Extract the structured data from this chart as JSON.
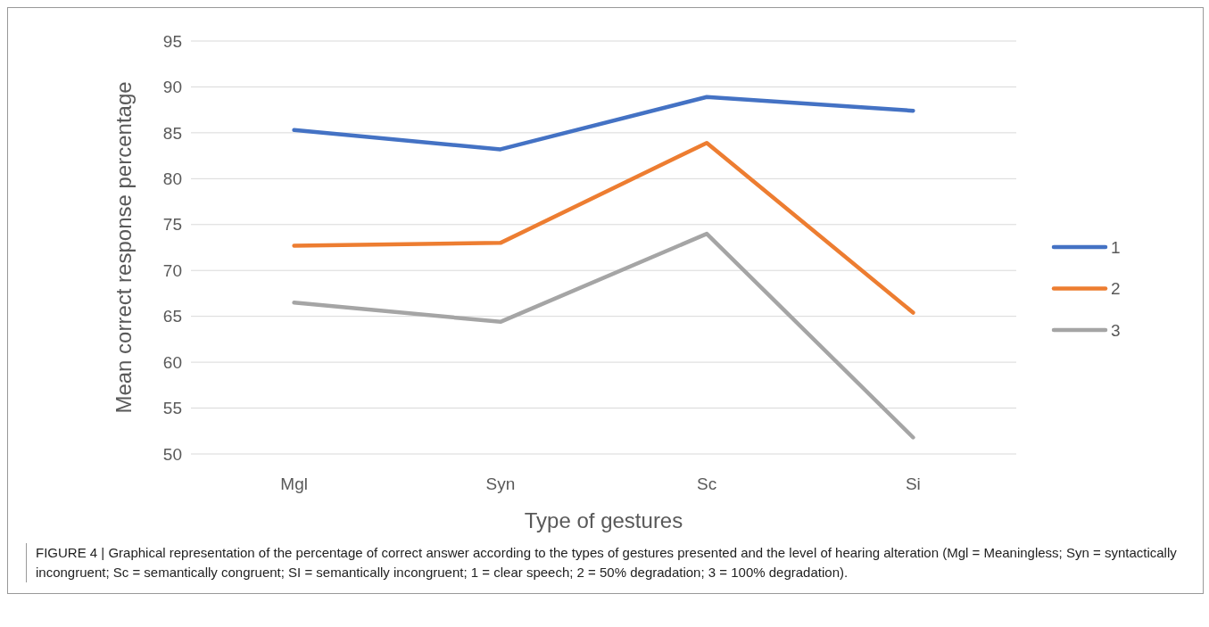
{
  "chart_data": {
    "type": "line",
    "xlabel": "Type of gestures",
    "ylabel": "Mean correct response percentage",
    "categories": [
      "Mgl",
      "Syn",
      "Sc",
      "Si"
    ],
    "series": [
      {
        "name": "1",
        "color": "#4472c4",
        "values": [
          85.3,
          83.2,
          88.9,
          87.4
        ]
      },
      {
        "name": "2",
        "color": "#ed7d31",
        "values": [
          72.7,
          73.0,
          83.9,
          65.4
        ]
      },
      {
        "name": "3",
        "color": "#a5a5a5",
        "values": [
          66.5,
          64.4,
          74.0,
          51.8
        ]
      }
    ],
    "ylim": [
      50,
      95
    ],
    "yticks": [
      50,
      55,
      60,
      65,
      70,
      75,
      80,
      85,
      90,
      95
    ],
    "grid": "y",
    "legend": "right",
    "marker": "none",
    "line_style": "solid",
    "annotations": [
      "FIGURE 4 | Graphical representation of the percentage of correct answer according to the types of gestures presented and the level of hearing alteration (Mgl = Meaningless; Syn = syntactically incongruent; Sc = semantically congruent; SI = semantically incongruent; 1 = clear speech; 2 = 50% degradation; 3 = 100% degradation)."
    ]
  }
}
